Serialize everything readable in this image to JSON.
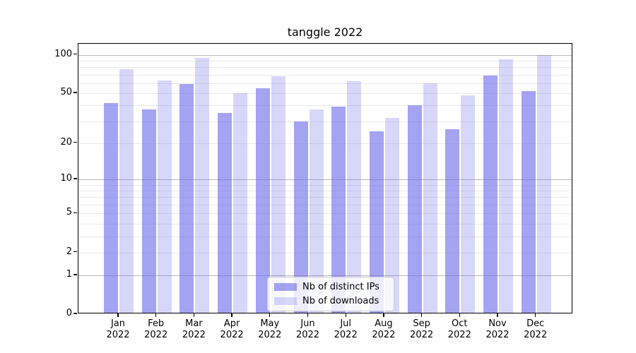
{
  "title": "tanggle 2022",
  "chart_data": {
    "type": "bar",
    "title": "tanggle 2022",
    "categories": [
      "Jan 2022",
      "Feb 2022",
      "Mar 2022",
      "Apr 2022",
      "May 2022",
      "Jun 2022",
      "Jul 2022",
      "Aug 2022",
      "Sep 2022",
      "Oct 2022",
      "Nov 2022",
      "Dec 2022"
    ],
    "x_tick_months": [
      "Jan",
      "Feb",
      "Mar",
      "Apr",
      "May",
      "Jun",
      "Jul",
      "Aug",
      "Sep",
      "Oct",
      "Nov",
      "Dec"
    ],
    "x_tick_year": "2022",
    "series": [
      {
        "name": "Nb of distinct IPs",
        "color": "rgba(108,108,236,0.62)",
        "values": [
          42,
          37,
          59,
          35,
          55,
          30,
          39,
          25,
          40,
          26,
          69,
          52
        ]
      },
      {
        "name": "Nb of downloads",
        "color": "rgba(108,108,236,0.27)",
        "values": [
          77,
          63,
          95,
          50,
          68,
          37,
          62,
          32,
          60,
          48,
          92,
          100
        ]
      }
    ],
    "yscale": "symlog",
    "ylim": [
      0,
      122
    ],
    "y_ticks": [
      0,
      1,
      2,
      5,
      10,
      20,
      50,
      100
    ],
    "y_tick_labels": [
      "0",
      "1",
      "2",
      "5",
      "10",
      "20",
      "50",
      "100"
    ],
    "major_gridlines": [
      1,
      10,
      100
    ],
    "minor_gridlines": [
      2,
      3,
      4,
      5,
      6,
      7,
      8,
      9,
      20,
      30,
      40,
      50,
      60,
      70,
      80,
      90
    ],
    "grid": true,
    "legend_position": "lower center",
    "colors": {
      "axis": "#000000",
      "major_grid": "#b8b8b8",
      "minor_grid": "#eaeaea"
    }
  }
}
